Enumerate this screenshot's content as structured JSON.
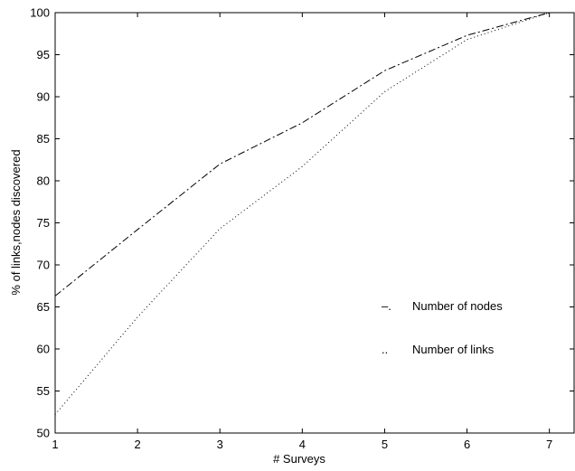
{
  "chart_data": {
    "type": "line",
    "title": "",
    "xlabel": "# Surveys",
    "ylabel": "% of links,nodes discovered",
    "xlim": [
      1,
      7.3
    ],
    "ylim": [
      50,
      100
    ],
    "xticks": [
      1,
      2,
      3,
      4,
      5,
      6,
      7
    ],
    "yticks": [
      50,
      55,
      60,
      65,
      70,
      75,
      80,
      85,
      90,
      95,
      100
    ],
    "grid": false,
    "legend_position": "right-middle",
    "x": [
      1,
      2,
      3,
      4,
      5,
      6,
      7
    ],
    "series": [
      {
        "name": "Number of nodes",
        "marker": "–.",
        "style": "dashdot",
        "values": [
          66.3,
          74.2,
          82.0,
          86.9,
          93.1,
          97.3,
          100.0
        ]
      },
      {
        "name": "Number of links",
        "marker": "..",
        "style": "dotted",
        "values": [
          52.2,
          63.8,
          74.3,
          81.7,
          90.6,
          96.8,
          100.0
        ]
      }
    ]
  }
}
